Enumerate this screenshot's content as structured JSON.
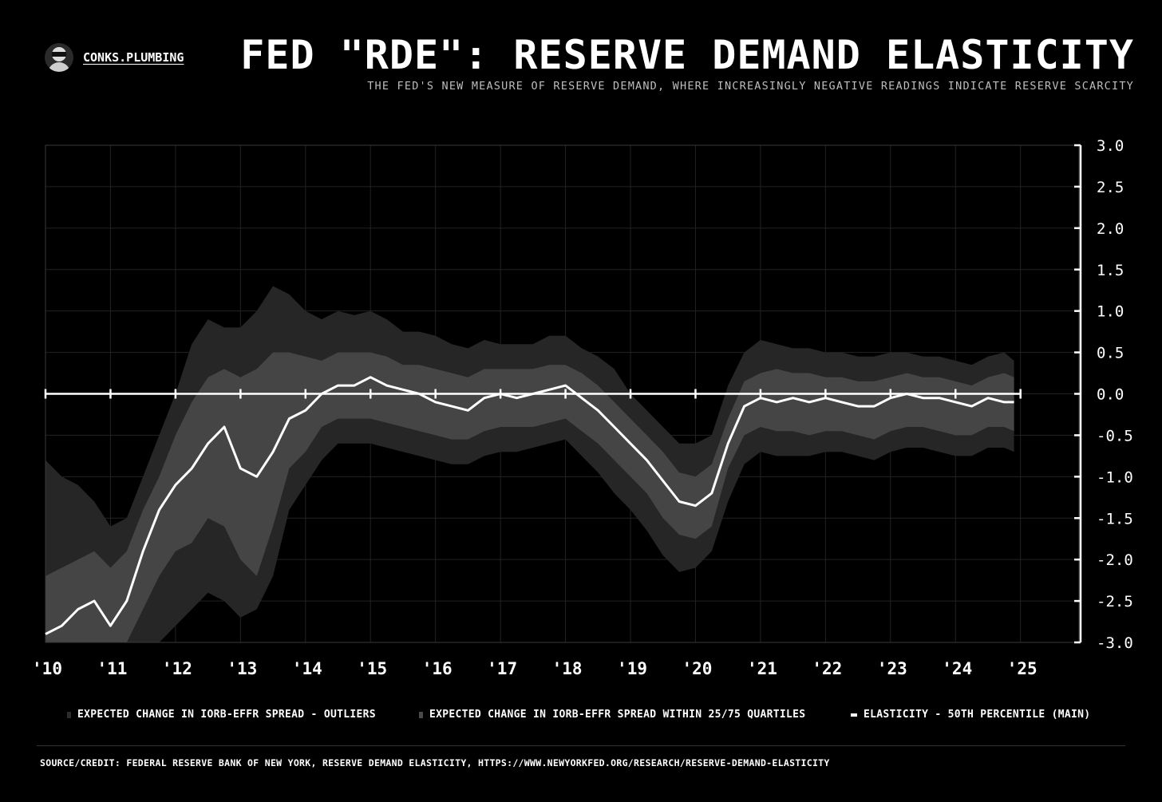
{
  "brand": {
    "name": "CONKS.PLUMBING",
    "avatar_icon": "ninja-avatar-icon"
  },
  "title": "FED \"RDE\": RESERVE DEMAND ELASTICITY",
  "subtitle": "THE FED'S NEW MEASURE OF RESERVE DEMAND, WHERE INCREASINGLY NEGATIVE READINGS INDICATE RESERVE SCARCITY",
  "legend": [
    {
      "label": "EXPECTED CHANGE IN IORB-EFFR SPREAD - OUTLIERS",
      "color": "#2c2c2c"
    },
    {
      "label": "EXPECTED CHANGE IN IORB-EFFR SPREAD WITHIN 25/75 QUARTILES",
      "color": "#4a4a4a"
    },
    {
      "label": "ELASTICITY - 50TH PERCENTILE (MAIN)",
      "color": "#ffffff"
    }
  ],
  "source": "SOURCE/CREDIT: FEDERAL RESERVE BANK OF NEW YORK, RESERVE DEMAND ELASTICITY, HTTPS://WWW.NEWYORKFED.ORG/RESEARCH/RESERVE-DEMAND-ELASTICITY",
  "colors": {
    "background": "#000000",
    "outer_band": "#262626",
    "inner_band": "#454545",
    "median": "#ffffff",
    "grid": "#222222"
  },
  "chart_data": {
    "type": "area",
    "xlim": [
      2010,
      2025.9
    ],
    "ylim": [
      -3.0,
      3.0
    ],
    "x_tick_values": [
      2010,
      2011,
      2012,
      2013,
      2014,
      2015,
      2016,
      2017,
      2018,
      2019,
      2020,
      2021,
      2022,
      2023,
      2024,
      2025
    ],
    "x_tick_labels": [
      "'10",
      "'11",
      "'12",
      "'13",
      "'14",
      "'15",
      "'16",
      "'17",
      "'18",
      "'19",
      "'20",
      "'21",
      "'22",
      "'23",
      "'24",
      "'25"
    ],
    "y_ticks": [
      3.0,
      2.5,
      2.0,
      1.5,
      1.0,
      0.5,
      0.0,
      -0.5,
      -1.0,
      -1.5,
      -2.0,
      -2.5,
      -3.0
    ],
    "y_tick_labels": [
      "3.0",
      "2.5",
      "2.0",
      "1.5",
      "1.0",
      "0.5",
      "0.0",
      "-0.5",
      "-1.0",
      "-1.5",
      "-2.0",
      "-2.5",
      "-3.0"
    ],
    "y_axis_position": "right",
    "grid": true,
    "legend_position": "bottom",
    "x": [
      2010.0,
      2010.25,
      2010.5,
      2010.75,
      2011.0,
      2011.25,
      2011.5,
      2011.75,
      2012.0,
      2012.25,
      2012.5,
      2012.75,
      2013.0,
      2013.25,
      2013.5,
      2013.75,
      2014.0,
      2014.25,
      2014.5,
      2014.75,
      2015.0,
      2015.25,
      2015.5,
      2015.75,
      2016.0,
      2016.25,
      2016.5,
      2016.75,
      2017.0,
      2017.25,
      2017.5,
      2017.75,
      2018.0,
      2018.25,
      2018.5,
      2018.75,
      2019.0,
      2019.25,
      2019.5,
      2019.75,
      2020.0,
      2020.25,
      2020.5,
      2020.75,
      2021.0,
      2021.25,
      2021.5,
      2021.75,
      2022.0,
      2022.25,
      2022.5,
      2022.75,
      2023.0,
      2023.25,
      2023.5,
      2023.75,
      2024.0,
      2024.25,
      2024.5,
      2024.75,
      2024.9
    ],
    "series": [
      {
        "name": "ELASTICITY - 50TH PERCENTILE (MAIN)",
        "role": "median",
        "values": [
          -2.9,
          -2.8,
          -2.6,
          -2.5,
          -2.8,
          -2.5,
          -1.9,
          -1.4,
          -1.1,
          -0.9,
          -0.6,
          -0.4,
          -0.9,
          -1.0,
          -0.7,
          -0.3,
          -0.2,
          0.0,
          0.1,
          0.1,
          0.2,
          0.1,
          0.05,
          0.0,
          -0.1,
          -0.15,
          -0.2,
          -0.05,
          0.0,
          -0.05,
          0.0,
          0.05,
          0.1,
          -0.05,
          -0.2,
          -0.4,
          -0.6,
          -0.8,
          -1.05,
          -1.3,
          -1.35,
          -1.2,
          -0.6,
          -0.15,
          -0.05,
          -0.1,
          -0.05,
          -0.1,
          -0.05,
          -0.1,
          -0.15,
          -0.15,
          -0.05,
          0.0,
          -0.05,
          -0.05,
          -0.1,
          -0.15,
          -0.05,
          -0.1,
          -0.1
        ]
      },
      {
        "name": "EXPECTED CHANGE IN IORB-EFFR SPREAD WITHIN 25/75 QUARTILES (UPPER)",
        "role": "inner_upper",
        "values": [
          -2.2,
          -2.1,
          -2.0,
          -1.9,
          -2.1,
          -1.9,
          -1.4,
          -1.0,
          -0.5,
          -0.1,
          0.2,
          0.3,
          0.2,
          0.3,
          0.5,
          0.5,
          0.45,
          0.4,
          0.5,
          0.5,
          0.5,
          0.45,
          0.35,
          0.35,
          0.3,
          0.25,
          0.2,
          0.3,
          0.3,
          0.3,
          0.3,
          0.35,
          0.35,
          0.25,
          0.1,
          -0.1,
          -0.3,
          -0.5,
          -0.7,
          -0.95,
          -1.0,
          -0.85,
          -0.3,
          0.15,
          0.25,
          0.3,
          0.25,
          0.25,
          0.2,
          0.2,
          0.15,
          0.15,
          0.2,
          0.25,
          0.2,
          0.2,
          0.15,
          0.1,
          0.2,
          0.25,
          0.2
        ]
      },
      {
        "name": "EXPECTED CHANGE IN IORB-EFFR SPREAD WITHIN 25/75 QUARTILES (LOWER)",
        "role": "inner_lower",
        "values": [
          -3.0,
          -3.0,
          -3.0,
          -3.0,
          -3.0,
          -3.0,
          -2.6,
          -2.2,
          -1.9,
          -1.8,
          -1.5,
          -1.6,
          -2.0,
          -2.2,
          -1.6,
          -0.9,
          -0.7,
          -0.4,
          -0.3,
          -0.3,
          -0.3,
          -0.35,
          -0.4,
          -0.45,
          -0.5,
          -0.55,
          -0.55,
          -0.45,
          -0.4,
          -0.4,
          -0.4,
          -0.35,
          -0.3,
          -0.45,
          -0.6,
          -0.8,
          -1.0,
          -1.2,
          -1.5,
          -1.7,
          -1.75,
          -1.6,
          -0.9,
          -0.5,
          -0.4,
          -0.45,
          -0.45,
          -0.5,
          -0.45,
          -0.45,
          -0.5,
          -0.55,
          -0.45,
          -0.4,
          -0.4,
          -0.45,
          -0.5,
          -0.5,
          -0.4,
          -0.4,
          -0.45
        ]
      },
      {
        "name": "EXPECTED CHANGE IN IORB-EFFR SPREAD - OUTLIERS (UPPER)",
        "role": "outer_upper",
        "values": [
          -0.8,
          -1.0,
          -1.1,
          -1.3,
          -1.6,
          -1.5,
          -1.0,
          -0.5,
          0.0,
          0.6,
          0.9,
          0.8,
          0.8,
          1.0,
          1.3,
          1.2,
          1.0,
          0.9,
          1.0,
          0.95,
          1.0,
          0.9,
          0.75,
          0.75,
          0.7,
          0.6,
          0.55,
          0.65,
          0.6,
          0.6,
          0.6,
          0.7,
          0.7,
          0.55,
          0.45,
          0.3,
          0.0,
          -0.2,
          -0.4,
          -0.6,
          -0.6,
          -0.5,
          0.1,
          0.5,
          0.65,
          0.6,
          0.55,
          0.55,
          0.5,
          0.5,
          0.45,
          0.45,
          0.5,
          0.5,
          0.45,
          0.45,
          0.4,
          0.35,
          0.45,
          0.5,
          0.4
        ]
      },
      {
        "name": "EXPECTED CHANGE IN IORB-EFFR SPREAD - OUTLIERS (LOWER)",
        "role": "outer_lower",
        "values": [
          -3.0,
          -3.0,
          -3.0,
          -3.0,
          -3.0,
          -3.0,
          -3.0,
          -3.0,
          -2.8,
          -2.6,
          -2.4,
          -2.5,
          -2.7,
          -2.6,
          -2.2,
          -1.4,
          -1.1,
          -0.8,
          -0.6,
          -0.6,
          -0.6,
          -0.65,
          -0.7,
          -0.75,
          -0.8,
          -0.85,
          -0.85,
          -0.75,
          -0.7,
          -0.7,
          -0.65,
          -0.6,
          -0.55,
          -0.75,
          -0.95,
          -1.2,
          -1.4,
          -1.65,
          -1.95,
          -2.15,
          -2.1,
          -1.9,
          -1.3,
          -0.85,
          -0.7,
          -0.75,
          -0.75,
          -0.75,
          -0.7,
          -0.7,
          -0.75,
          -0.8,
          -0.7,
          -0.65,
          -0.65,
          -0.7,
          -0.75,
          -0.75,
          -0.65,
          -0.65,
          -0.7
        ]
      }
    ]
  }
}
